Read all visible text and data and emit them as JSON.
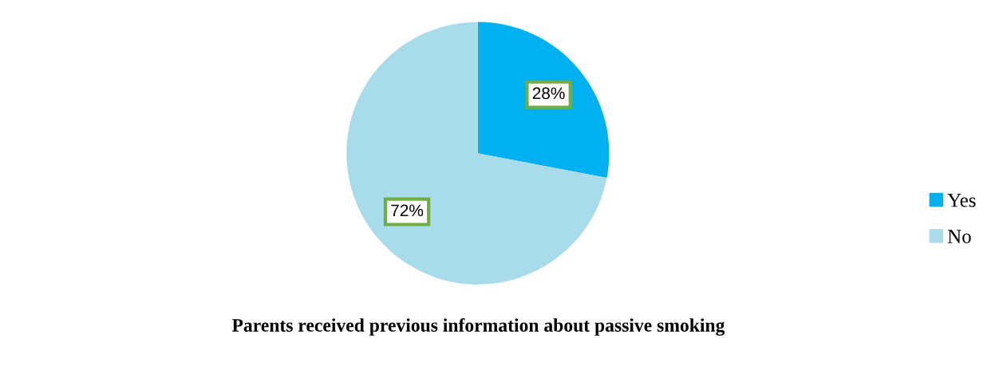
{
  "chart_data": {
    "type": "pie",
    "title": "Parents received previous information about passive smoking",
    "categories": [
      "Yes",
      "No"
    ],
    "values": [
      28,
      72
    ],
    "colors": [
      "#00b0f0",
      "#a9dcea"
    ],
    "value_labels": [
      "28%",
      "72%"
    ],
    "legend": "right"
  }
}
